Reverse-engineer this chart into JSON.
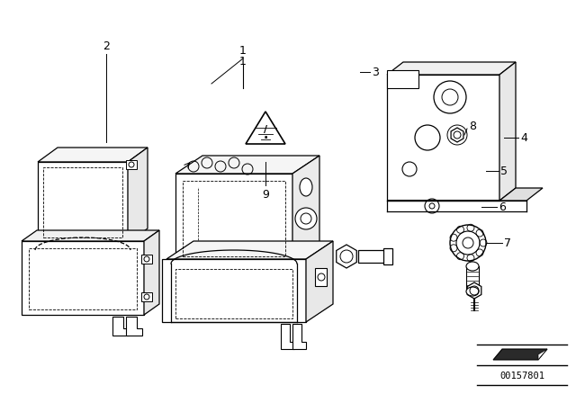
{
  "bg_color": "#ffffff",
  "line_color": "#000000",
  "diagram_id": "00157801",
  "figsize": [
    6.4,
    4.48
  ],
  "dpi": 100
}
